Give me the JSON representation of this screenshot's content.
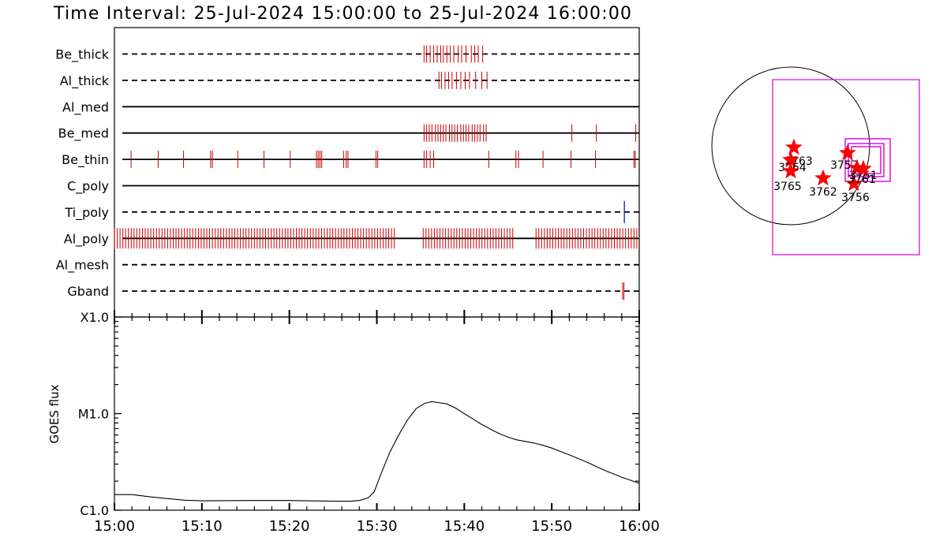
{
  "title": "Time Interval: 25-Jul-2024 15:00:00 to 25-Jul-2024 16:00:00",
  "chart_data": [
    {
      "type": "timeline",
      "x_range_minutes": [
        0,
        60
      ],
      "x_tick_labels": [
        "15:00",
        "15:10",
        "15:20",
        "15:30",
        "15:40",
        "15:50",
        "16:00"
      ],
      "colors": {
        "event": "#cc0000",
        "event_alt": "#0000cc"
      },
      "channels": [
        {
          "name": "Be_thick",
          "style": "dashed",
          "events": [
            35.4,
            35.7,
            36.1,
            36.5,
            36.9,
            37.3,
            37.6,
            38.0,
            38.4,
            38.8,
            39.3,
            39.7,
            40.2,
            40.8,
            41.2,
            41.6,
            42.1
          ]
        },
        {
          "name": "Al_thick",
          "style": "dashed",
          "events": [
            37.1,
            37.4,
            37.8,
            38.2,
            38.6,
            39.1,
            39.6,
            40.1,
            40.6,
            41.3,
            42.0,
            42.6
          ]
        },
        {
          "name": "Al_med",
          "style": "solid",
          "events": []
        },
        {
          "name": "Be_med",
          "style": "solid",
          "events": [
            35.4,
            35.7,
            36.0,
            36.3,
            36.7,
            37.0,
            37.3,
            37.6,
            37.9,
            38.3,
            38.6,
            38.9,
            39.2,
            39.6,
            39.9,
            40.2,
            40.5,
            40.9,
            41.2,
            41.5,
            41.8,
            42.2,
            42.5,
            52.3,
            55.1,
            59.6
          ]
        },
        {
          "name": "Be_thin",
          "style": "solid",
          "events": [
            1.9,
            5.0,
            7.9,
            11.0,
            11.2,
            14.1,
            17.1,
            20.1,
            23.1,
            23.3,
            23.5,
            23.7,
            26.2,
            26.5,
            26.7,
            29.9,
            30.1,
            35.4,
            35.7,
            36.1,
            36.5,
            42.8,
            45.9,
            46.2,
            49.0,
            52.2,
            55.0,
            59.4,
            59.55
          ]
        },
        {
          "name": "C_poly",
          "style": "solid",
          "events": []
        },
        {
          "name": "Ti_poly",
          "style": "dashed",
          "events": [],
          "events_alt": [
            58.3
          ]
        },
        {
          "name": "Al_poly",
          "style": "solid",
          "density": "dense",
          "spans": [
            [
              0.0,
              32.3
            ],
            [
              35.3,
              45.6
            ],
            [
              48.2,
              60.0
            ]
          ],
          "spacing_minutes": 0.32
        },
        {
          "name": "Al_mesh",
          "style": "dashed",
          "events": []
        },
        {
          "name": "Gband",
          "style": "dashed",
          "events": [
            58.1,
            58.25
          ]
        }
      ]
    },
    {
      "type": "line",
      "ylabel": "GOES flux",
      "y_tick_labels": [
        "X1.0",
        "M1.0",
        "C1.0"
      ],
      "y_scale": "log",
      "y_range": [
        1e-06,
        0.0001
      ],
      "x_tick_labels": [
        "15:00",
        "15:10",
        "15:20",
        "15:30",
        "15:40",
        "15:50",
        "16:00"
      ],
      "x_range_minutes": [
        0,
        60
      ],
      "x": [
        0,
        2,
        4,
        6,
        8,
        10,
        15,
        20,
        25,
        27,
        28,
        29,
        29.7,
        30.5,
        31.5,
        32.5,
        33.5,
        34.5,
        35.5,
        36.3,
        37,
        38,
        39,
        40,
        41,
        42,
        43,
        44,
        45,
        46,
        47,
        48,
        49,
        50,
        52,
        54,
        56,
        58,
        60
      ],
      "y": [
        1.45e-06,
        1.45e-06,
        1.38e-06,
        1.32e-06,
        1.27e-06,
        1.25e-06,
        1.26e-06,
        1.26e-06,
        1.24e-06,
        1.24e-06,
        1.26e-06,
        1.34e-06,
        1.55e-06,
        2.4e-06,
        4e-06,
        6e-06,
        8.6e-06,
        1.13e-05,
        1.28e-05,
        1.33e-05,
        1.3e-05,
        1.26e-05,
        1.14e-05,
        1e-05,
        8.8e-06,
        7.7e-06,
        6.9e-06,
        6.2e-06,
        5.7e-06,
        5.35e-06,
        5.15e-06,
        4.95e-06,
        4.7e-06,
        4.4e-06,
        3.75e-06,
        3.15e-06,
        2.6e-06,
        2.2e-06,
        1.9e-06
      ]
    },
    {
      "type": "scatter",
      "subtype": "solar-disk-map",
      "colors": {
        "marker": "#ff0000",
        "box": "#dd00dd",
        "disk": "#000000"
      },
      "regions": [
        {
          "label": "3757",
          "x": 0.72,
          "y": -0.09
        },
        {
          "label": "3762",
          "x": 0.41,
          "y": -0.41
        },
        {
          "label": "3756",
          "x": 0.8,
          "y": -0.48
        },
        {
          "label": "3763",
          "x": 0.04,
          "y": -0.02
        },
        {
          "label": "3764",
          "x": 0.0,
          "y": -0.18
        },
        {
          "label": "3765",
          "x": 0.0,
          "y": -0.32
        },
        {
          "label": "3751",
          "x": 0.84,
          "y": -0.28
        },
        {
          "label": "3761",
          "x": 0.92,
          "y": -0.29
        }
      ]
    }
  ]
}
